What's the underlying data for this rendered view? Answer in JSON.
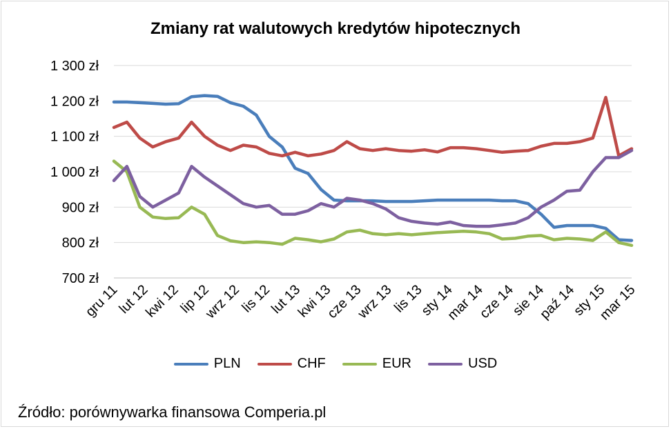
{
  "chart_data": {
    "type": "line",
    "title": "Zmiany rat walutowych kredytów hipotecznych",
    "xlabel": "",
    "ylabel": "",
    "ylim": [
      700,
      1300
    ],
    "y_ticks": [
      {
        "value": 700,
        "label": "700 zł"
      },
      {
        "value": 800,
        "label": "800 zł"
      },
      {
        "value": 900,
        "label": "900 zł"
      },
      {
        "value": 1000,
        "label": "1 000 zł"
      },
      {
        "value": 1100,
        "label": "1 100 zł"
      },
      {
        "value": 1200,
        "label": "1 200 zł"
      },
      {
        "value": 1300,
        "label": "1 300 zł"
      }
    ],
    "x_ticks": [
      "gru 11",
      "lut 12",
      "kwi 12",
      "lip 12",
      "wrz 12",
      "lis 12",
      "lut 13",
      "kwi 13",
      "cze 13",
      "wrz 13",
      "lis 13",
      "sty 14",
      "mar 14",
      "cze 14",
      "sie 14",
      "paź 14",
      "sty 15",
      "mar 15"
    ],
    "x": [
      "gru 11",
      "sty 12",
      "lut 12",
      "mar 12",
      "kwi 12",
      "maj 12",
      "cze 12",
      "lip 12",
      "sie 12",
      "wrz 12",
      "paź 12",
      "lis 12",
      "gru 12",
      "sty 13",
      "lut 13",
      "mar 13",
      "kwi 13",
      "maj 13",
      "cze 13",
      "lip 13",
      "sie 13",
      "wrz 13",
      "paź 13",
      "lis 13",
      "gru 13",
      "sty 14",
      "lut 14",
      "mar 14",
      "kwi 14",
      "maj 14",
      "cze 14",
      "lip 14",
      "sie 14",
      "wrz 14",
      "paź 14",
      "lis 14",
      "gru 14",
      "sty 15",
      "lut 15",
      "mar 15",
      "kwi 15"
    ],
    "series": [
      {
        "name": "PLN",
        "color": "#4a7ebb",
        "values": [
          1197,
          1197,
          1195,
          1193,
          1191,
          1192,
          1212,
          1215,
          1213,
          1195,
          1185,
          1160,
          1100,
          1070,
          1010,
          995,
          950,
          920,
          918,
          918,
          918,
          916,
          916,
          916,
          918,
          920,
          920,
          920,
          920,
          920,
          918,
          918,
          910,
          880,
          843,
          848,
          848,
          848,
          840,
          808,
          806
        ]
      },
      {
        "name": "CHF",
        "color": "#be4b48",
        "values": [
          1125,
          1140,
          1095,
          1070,
          1085,
          1095,
          1140,
          1100,
          1075,
          1060,
          1075,
          1070,
          1052,
          1045,
          1055,
          1045,
          1050,
          1060,
          1085,
          1065,
          1060,
          1065,
          1060,
          1058,
          1062,
          1056,
          1068,
          1068,
          1065,
          1060,
          1055,
          1058,
          1060,
          1072,
          1080,
          1080,
          1085,
          1095,
          1210,
          1045,
          1065
        ]
      },
      {
        "name": "EUR",
        "color": "#98b954",
        "values": [
          1030,
          1000,
          900,
          872,
          868,
          870,
          900,
          880,
          820,
          805,
          800,
          802,
          800,
          795,
          812,
          808,
          802,
          810,
          830,
          835,
          825,
          822,
          825,
          822,
          825,
          828,
          830,
          832,
          830,
          825,
          810,
          812,
          818,
          820,
          808,
          812,
          810,
          806,
          830,
          800,
          792
        ]
      },
      {
        "name": "USD",
        "color": "#7d60a0",
        "values": [
          975,
          1015,
          930,
          900,
          920,
          940,
          1015,
          985,
          960,
          935,
          910,
          900,
          905,
          880,
          880,
          890,
          910,
          900,
          925,
          920,
          910,
          895,
          870,
          860,
          855,
          852,
          858,
          848,
          846,
          846,
          850,
          855,
          870,
          900,
          920,
          945,
          948,
          1000,
          1040,
          1040,
          1060
        ]
      }
    ],
    "grid": true,
    "legend": "bottom"
  },
  "source": "Źródło: porównywarka finansowa Comperia.pl"
}
